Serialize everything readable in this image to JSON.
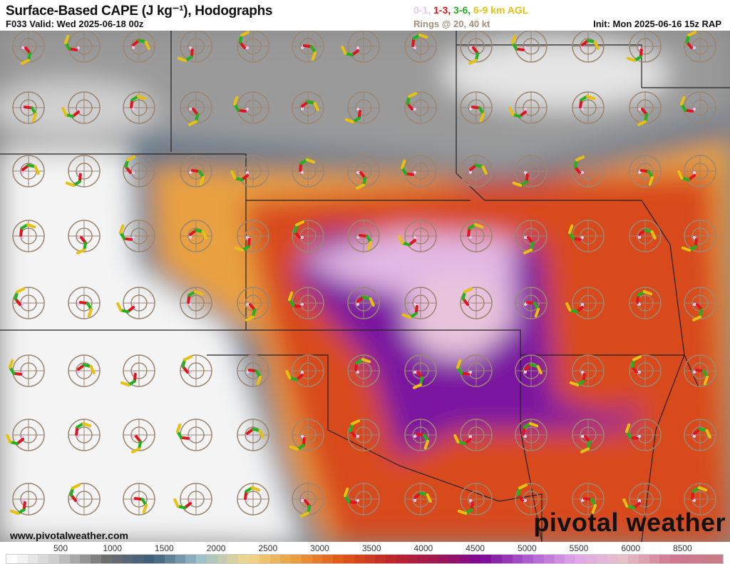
{
  "header": {
    "title": "Surface-Based CAPE (J kg⁻¹), Hodographs",
    "valid": "F033 Valid: Wed 2025-06-18 00z",
    "init": "Init: Mon 2025-06-16 15z RAP",
    "rings": "Rings @ 20, 40 kt",
    "layers": [
      {
        "label": "0-1,",
        "color": "#e8c8ee"
      },
      {
        "label": "1-3,",
        "color": "#e0141e"
      },
      {
        "label": "3-6,",
        "color": "#22b01e"
      },
      {
        "label": "6-9 km AGL",
        "color": "#e8c010"
      }
    ]
  },
  "footer": {
    "website": "www.pivotalweather.com",
    "brand": "pivotal weather"
  },
  "colorbar": {
    "labels": [
      "500",
      "1000",
      "1500",
      "2000",
      "2500",
      "3000",
      "3500",
      "4000",
      "4500",
      "5000",
      "5500",
      "6000",
      "8500"
    ],
    "stops": [
      "#ffffff",
      "#c8c8c8",
      "#6e6e6e",
      "#3e5f7a",
      "#9cc0cc",
      "#f0d890",
      "#e8a040",
      "#e05818",
      "#c02828",
      "#a01850",
      "#7a0a98",
      "#b060d0",
      "#e0a8e8",
      "#e8c0c8",
      "#d07890",
      "#c87c88"
    ]
  }
}
